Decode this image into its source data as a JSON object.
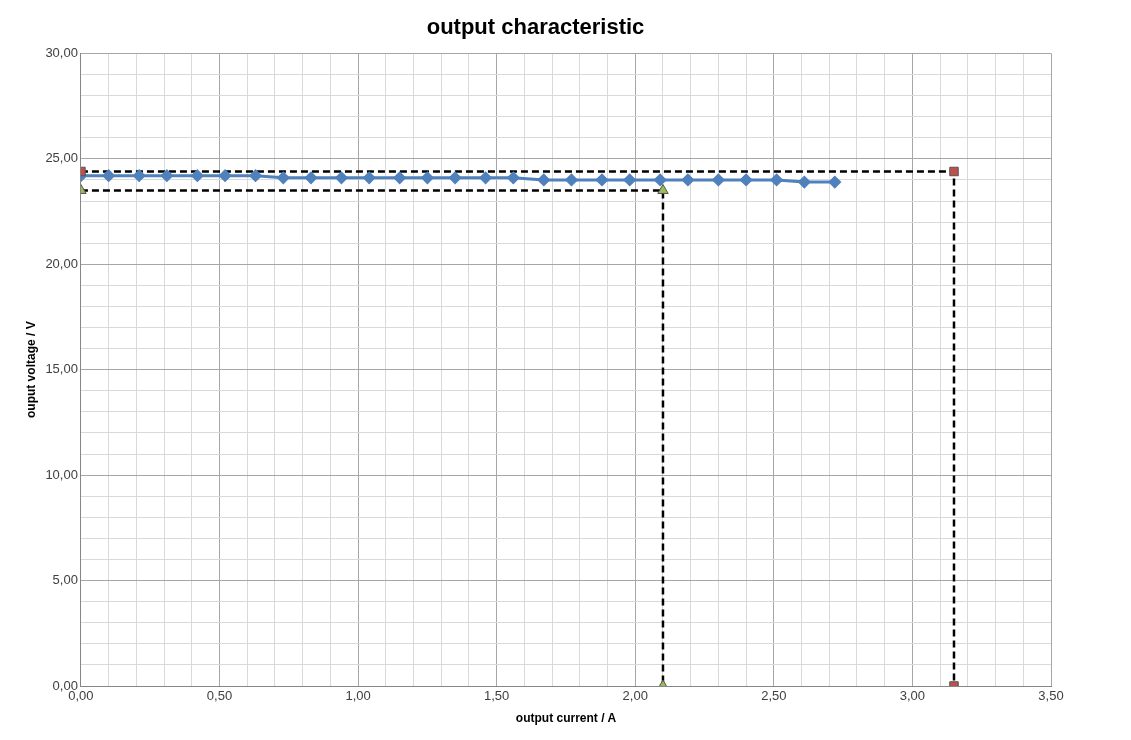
{
  "chart_data": {
    "type": "line",
    "title": "output characteristic",
    "xlabel": "output current / A",
    "ylabel": "ouput voltage / V",
    "xlim": [
      0,
      3.5
    ],
    "ylim": [
      0,
      30
    ],
    "xticks": [
      {
        "value": 0,
        "label": "0,00"
      },
      {
        "value": 0.1,
        "label": null
      },
      {
        "value": 0.2,
        "label": null
      },
      {
        "value": 0.3,
        "label": null
      },
      {
        "value": 0.4,
        "label": null
      },
      {
        "value": 0.5,
        "label": "0,50"
      },
      {
        "value": 0.6,
        "label": null
      },
      {
        "value": 0.7,
        "label": null
      },
      {
        "value": 0.8,
        "label": null
      },
      {
        "value": 0.9,
        "label": null
      },
      {
        "value": 1,
        "label": "1,00"
      },
      {
        "value": 1.1,
        "label": null
      },
      {
        "value": 1.2,
        "label": null
      },
      {
        "value": 1.3,
        "label": null
      },
      {
        "value": 1.4,
        "label": null
      },
      {
        "value": 1.5,
        "label": "1,50"
      },
      {
        "value": 1.6,
        "label": null
      },
      {
        "value": 1.7,
        "label": null
      },
      {
        "value": 1.8,
        "label": null
      },
      {
        "value": 1.9,
        "label": null
      },
      {
        "value": 2,
        "label": "2,00"
      },
      {
        "value": 2.1,
        "label": null
      },
      {
        "value": 2.2,
        "label": null
      },
      {
        "value": 2.3,
        "label": null
      },
      {
        "value": 2.4,
        "label": null
      },
      {
        "value": 2.5,
        "label": "2,50"
      },
      {
        "value": 2.6,
        "label": null
      },
      {
        "value": 2.7,
        "label": null
      },
      {
        "value": 2.8,
        "label": null
      },
      {
        "value": 2.9,
        "label": null
      },
      {
        "value": 3,
        "label": "3,00"
      },
      {
        "value": 3.1,
        "label": null
      },
      {
        "value": 3.2,
        "label": null
      },
      {
        "value": 3.3,
        "label": null
      },
      {
        "value": 3.4,
        "label": null
      },
      {
        "value": 3.5,
        "label": "3,50"
      }
    ],
    "yticks": [
      {
        "value": 0,
        "label": "0,00"
      },
      {
        "value": 1,
        "label": null
      },
      {
        "value": 2,
        "label": null
      },
      {
        "value": 3,
        "label": null
      },
      {
        "value": 4,
        "label": null
      },
      {
        "value": 5,
        "label": "5,00"
      },
      {
        "value": 6,
        "label": null
      },
      {
        "value": 7,
        "label": null
      },
      {
        "value": 8,
        "label": null
      },
      {
        "value": 9,
        "label": null
      },
      {
        "value": 10,
        "label": "10,00"
      },
      {
        "value": 11,
        "label": null
      },
      {
        "value": 12,
        "label": null
      },
      {
        "value": 13,
        "label": null
      },
      {
        "value": 14,
        "label": null
      },
      {
        "value": 15,
        "label": "15,00"
      },
      {
        "value": 16,
        "label": null
      },
      {
        "value": 17,
        "label": null
      },
      {
        "value": 18,
        "label": null
      },
      {
        "value": 19,
        "label": null
      },
      {
        "value": 20,
        "label": "20,00"
      },
      {
        "value": 21,
        "label": null
      },
      {
        "value": 22,
        "label": null
      },
      {
        "value": 23,
        "label": null
      },
      {
        "value": 24,
        "label": null
      },
      {
        "value": 25,
        "label": "25,00"
      },
      {
        "value": 26,
        "label": null
      },
      {
        "value": 27,
        "label": null
      },
      {
        "value": 28,
        "label": null
      },
      {
        "value": 29,
        "label": null
      },
      {
        "value": 30,
        "label": "30,00"
      }
    ],
    "grid": true,
    "series": [
      {
        "color": "#4f81bd",
        "marker": "diamond",
        "line_style": "solid",
        "x": [
          0,
          0.1,
          0.21,
          0.31,
          0.42,
          0.52,
          0.63,
          0.73,
          0.83,
          0.94,
          1.04,
          1.15,
          1.25,
          1.35,
          1.46,
          1.56,
          1.67,
          1.77,
          1.88,
          1.98,
          2.09,
          2.19,
          2.3,
          2.4,
          2.51,
          2.61,
          2.72
        ],
        "values": [
          24.2,
          24.2,
          24.2,
          24.2,
          24.2,
          24.2,
          24.2,
          24.1,
          24.1,
          24.1,
          24.1,
          24.1,
          24.1,
          24.1,
          24.1,
          24.1,
          24.0,
          24.0,
          24.0,
          24.0,
          24.0,
          24.0,
          24.0,
          24.0,
          24.0,
          23.9,
          23.9
        ]
      },
      {
        "color": "#000000",
        "marker": "none",
        "line_style": "dashed",
        "x": [
          0,
          3.15,
          3.15
        ],
        "values": [
          24.4,
          24.4,
          0
        ]
      },
      {
        "color": "#000000",
        "marker": "none",
        "line_style": "dashed",
        "x": [
          0,
          2.1,
          2.1
        ],
        "values": [
          23.5,
          23.5,
          0
        ]
      },
      {
        "type": "scatter",
        "color": "#c0504d",
        "marker": "square",
        "x": [
          0,
          3.15,
          3.15
        ],
        "values": [
          24.4,
          24.4,
          0
        ]
      },
      {
        "type": "scatter",
        "color": "#9bbb59",
        "marker": "triangle",
        "x": [
          0,
          2.1,
          2.1
        ],
        "values": [
          23.5,
          23.5,
          0
        ]
      }
    ]
  }
}
